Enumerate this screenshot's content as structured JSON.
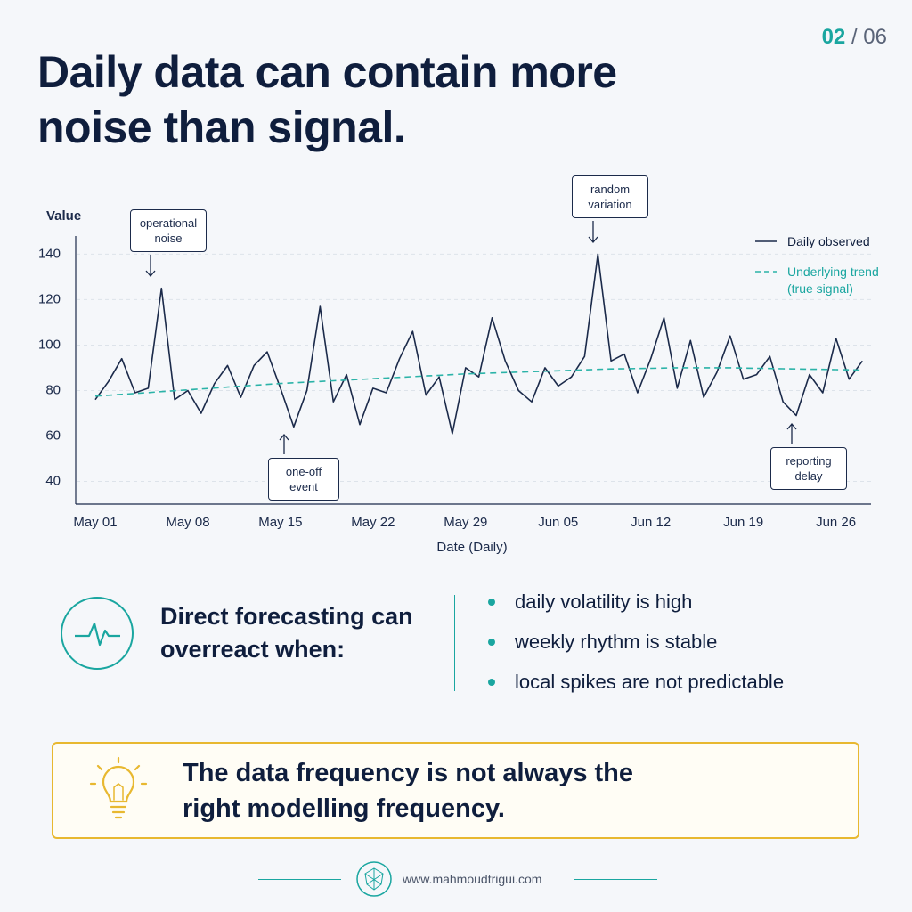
{
  "page_current": "02",
  "page_separator": "/",
  "page_total": "06",
  "title": "Daily data can contain more noise than signal.",
  "chart_data": {
    "type": "line",
    "y_label": "Value",
    "x_label": "Date (Daily)",
    "categories": [
      "May 01",
      null,
      null,
      null,
      null,
      null,
      null,
      "May 08",
      null,
      null,
      null,
      null,
      null,
      null,
      "May 15",
      null,
      null,
      null,
      null,
      null,
      null,
      "May 22",
      null,
      null,
      null,
      null,
      null,
      null,
      "May 29",
      null,
      null,
      null,
      null,
      null,
      null,
      "Jun 05",
      null,
      null,
      null,
      null,
      null,
      null,
      "Jun 12",
      null,
      null,
      null,
      null,
      null,
      null,
      "Jun 19",
      null,
      null,
      null,
      null,
      null,
      null,
      "Jun 26",
      null,
      null
    ],
    "series": [
      {
        "name": "Daily observed",
        "color": "#1b2a4a",
        "values": [
          76,
          84,
          94,
          79,
          81,
          125,
          76,
          80,
          70,
          83,
          91,
          77,
          91,
          97,
          81,
          64,
          80,
          117,
          75,
          87,
          65,
          81,
          79,
          94,
          106,
          78,
          86,
          61,
          90,
          86,
          112,
          93,
          80,
          75,
          90,
          82,
          86,
          95,
          140,
          93,
          96,
          79,
          94,
          112,
          81,
          102,
          77,
          88,
          104,
          85,
          87,
          95,
          75,
          69,
          87,
          79,
          103,
          85,
          93
        ]
      },
      {
        "name": "Underlying trend (true signal)",
        "color": "#2bb3a8",
        "dashed": true,
        "values": [
          77.5,
          77.9,
          78.3,
          78.7,
          79.1,
          79.5,
          79.9,
          80.3,
          80.7,
          81.1,
          81.5,
          81.9,
          82.3,
          82.7,
          83.1,
          83.4,
          83.7,
          84.0,
          84.3,
          84.6,
          84.9,
          85.2,
          85.5,
          85.8,
          86.1,
          86.4,
          86.7,
          87.0,
          87.3,
          87.5,
          87.7,
          87.9,
          88.1,
          88.3,
          88.5,
          88.7,
          88.9,
          89.1,
          89.3,
          89.5,
          89.6,
          89.7,
          89.8,
          89.9,
          90.0,
          90.0,
          90.0,
          90.0,
          90.0,
          89.9,
          89.8,
          89.7,
          89.6,
          89.5,
          89.4,
          89.3,
          89.2,
          89.1,
          89.0
        ]
      }
    ],
    "ylim": [
      30,
      148
    ],
    "yticks": [
      40,
      60,
      80,
      100,
      120,
      140
    ],
    "grid": true,
    "annotations": [
      "operational noise",
      "random variation",
      "one-off event",
      "reporting delay"
    ]
  },
  "info": {
    "heading": "Direct forecasting can overreact when:",
    "bullets": [
      "daily volatility is high",
      "weekly rhythm is stable",
      "local spikes are not predictable"
    ]
  },
  "callout": "The data frequency is not always the right modelling frequency.",
  "footer": "www.mahmoudtrigui.com"
}
